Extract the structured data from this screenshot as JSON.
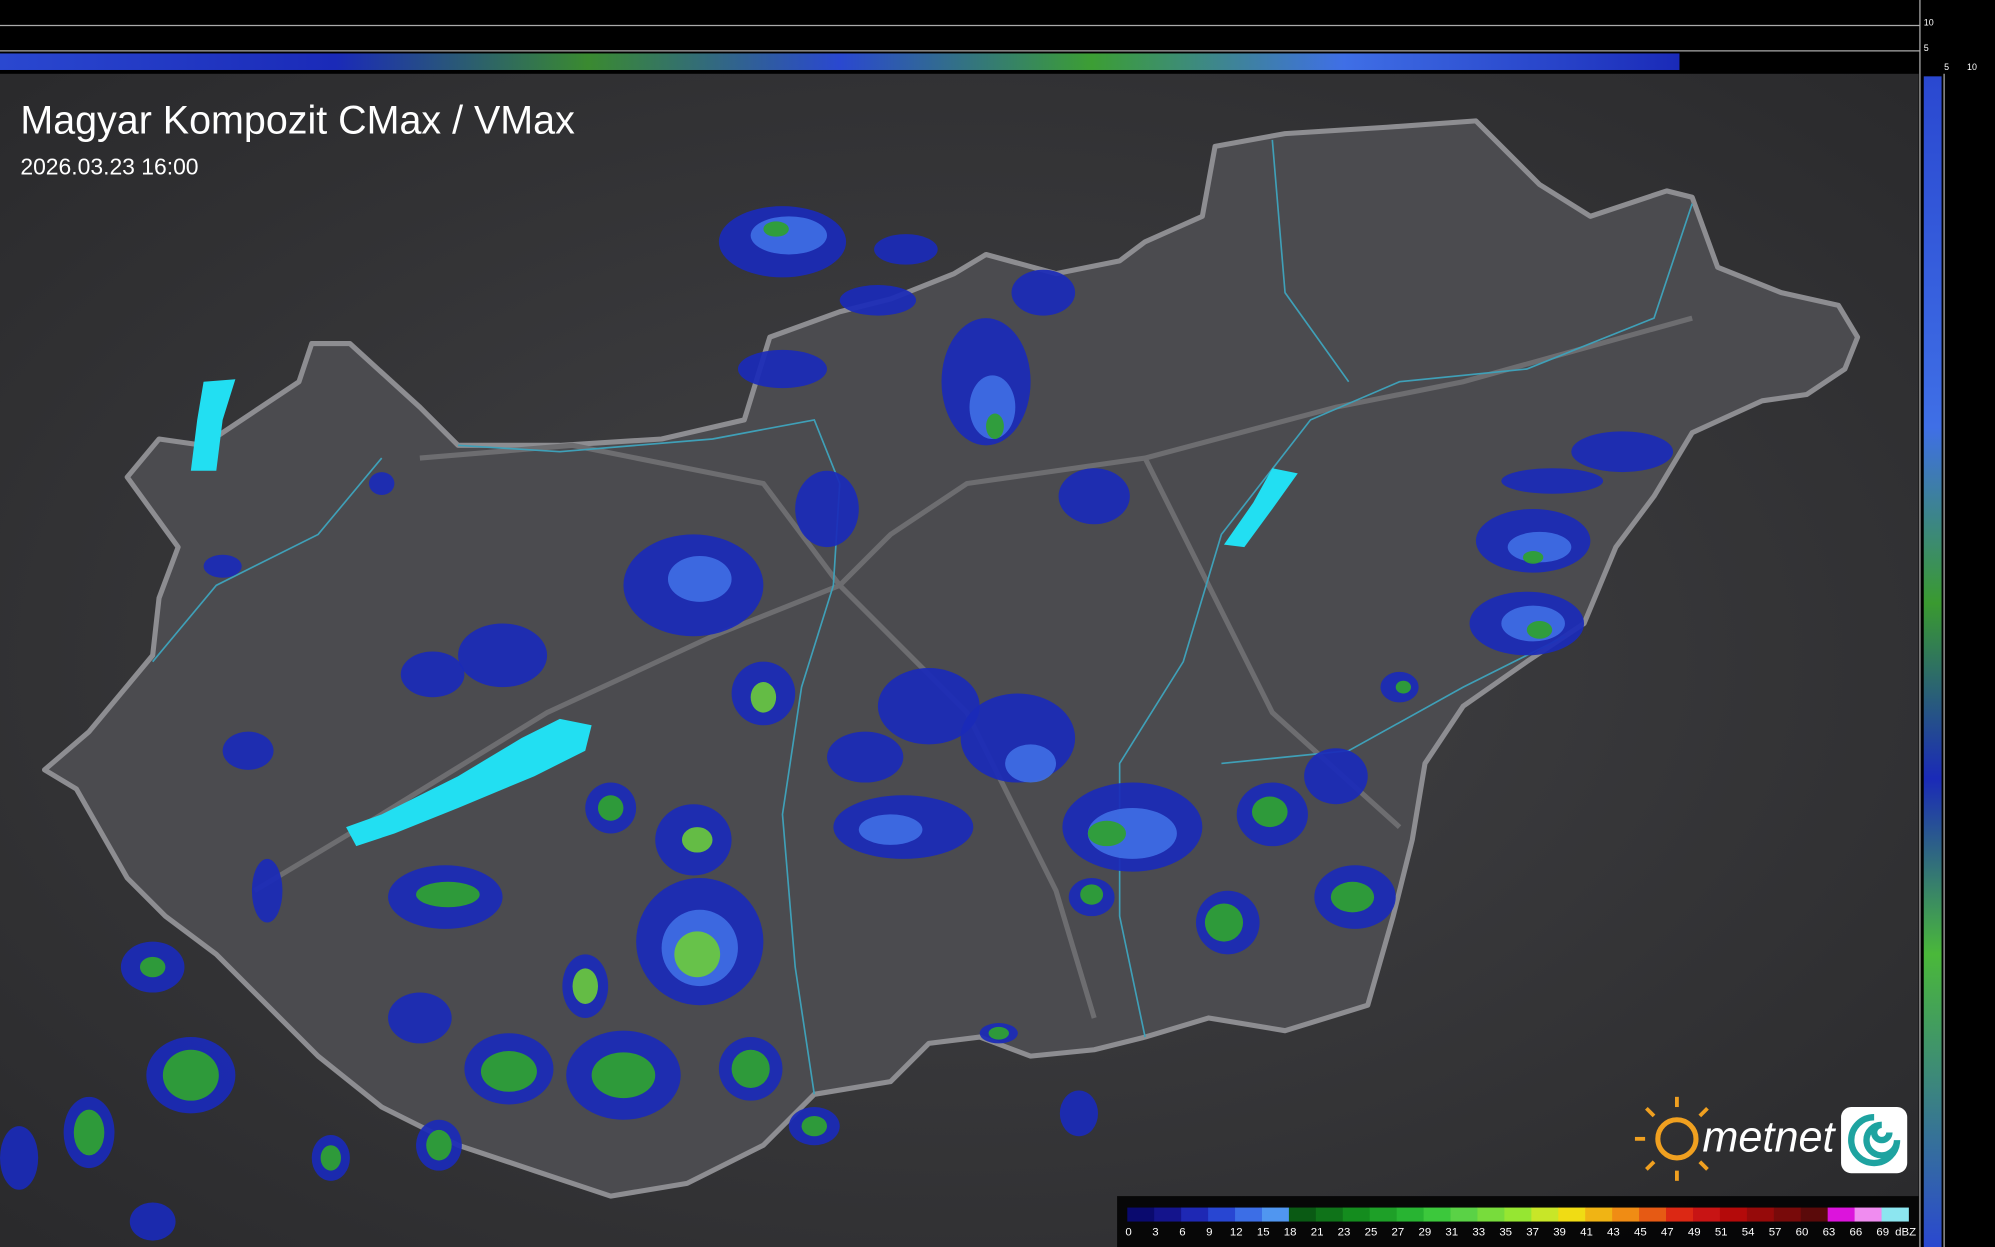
{
  "header": {
    "title": "Magyar Kompozit CMax / VMax",
    "timestamp": "2026.03.23 16:00"
  },
  "legend": {
    "unit": "dBZ",
    "ticks": [
      0,
      3,
      6,
      9,
      12,
      15,
      18,
      21,
      23,
      25,
      27,
      29,
      31,
      33,
      35,
      37,
      39,
      41,
      43,
      45,
      47,
      49,
      51,
      54,
      57,
      60,
      63,
      66,
      69
    ],
    "colors": [
      "#0a0a6e",
      "#14148c",
      "#1e28b4",
      "#2846d2",
      "#3c6ee6",
      "#5096f0",
      "#0a5a14",
      "#0f7319",
      "#148c1e",
      "#1ea028",
      "#28b432",
      "#3cc83c",
      "#5ad246",
      "#78dc3c",
      "#96e632",
      "#c8e628",
      "#f0dc14",
      "#f0b414",
      "#f08c14",
      "#e65a14",
      "#dc2814",
      "#c81414",
      "#b40a0a",
      "#960a0a",
      "#780a0a",
      "#5a0a0a",
      "#dc14dc",
      "#f08cf0",
      "#8ce6f0"
    ]
  },
  "logo": {
    "text": "metnet"
  },
  "side_axes": {
    "vertical": [
      10,
      5
    ],
    "horizontal": [
      5,
      10
    ]
  }
}
